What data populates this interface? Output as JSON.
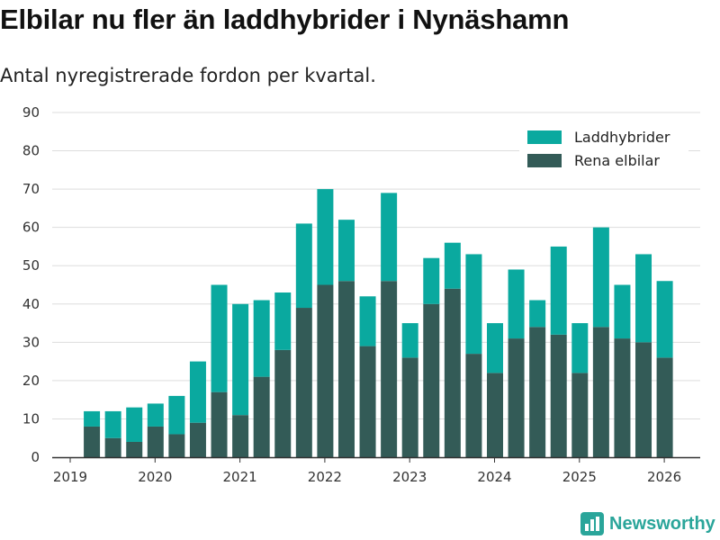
{
  "header": {
    "title": "Elbilar nu fler än laddhybrider i Nynäshamn",
    "subtitle": "Antal nyregistrerade fordon per kvartal."
  },
  "brand": {
    "name": "Newsworthy",
    "icon": "bar-chart-logo-icon",
    "color": "#2aa59a"
  },
  "colors": {
    "elbilar": "#335b57",
    "laddhybrider": "#0aa99f",
    "grid": "#dddddd",
    "axis": "#333333"
  },
  "chart_data": {
    "type": "bar",
    "stacked": true,
    "title": "Elbilar nu fler än laddhybrider i Nynäshamn",
    "subtitle": "Antal nyregistrerade fordon per kvartal.",
    "xlabel": "",
    "ylabel": "",
    "ylim": [
      0,
      90
    ],
    "yticks": [
      0,
      10,
      20,
      30,
      40,
      50,
      60,
      70,
      80,
      90
    ],
    "xticks": [
      "2019",
      "2020",
      "2021",
      "2022",
      "2023",
      "2024",
      "2025",
      "2026"
    ],
    "grid": true,
    "legend_position": "top-right",
    "categories": [
      "2019 Q2",
      "2019 Q3",
      "2019 Q4",
      "2020 Q1",
      "2020 Q2",
      "2020 Q3",
      "2020 Q4",
      "2021 Q1",
      "2021 Q2",
      "2021 Q3",
      "2021 Q4",
      "2022 Q1",
      "2022 Q2",
      "2022 Q3",
      "2022 Q4",
      "2023 Q1",
      "2023 Q2",
      "2023 Q3",
      "2023 Q4",
      "2024 Q1",
      "2024 Q2",
      "2024 Q3",
      "2024 Q4",
      "2025 Q1",
      "2025 Q2",
      "2025 Q3",
      "2025 Q4",
      "2026 Q1"
    ],
    "series": [
      {
        "name": "Rena elbilar",
        "values": [
          8,
          5,
          4,
          8,
          6,
          9,
          17,
          11,
          21,
          28,
          39,
          45,
          46,
          29,
          46,
          26,
          40,
          44,
          27,
          22,
          31,
          34,
          32,
          22,
          34,
          31,
          30,
          26
        ]
      },
      {
        "name": "Laddhybrider",
        "values": [
          4,
          7,
          9,
          6,
          10,
          16,
          28,
          29,
          20,
          15,
          22,
          25,
          16,
          13,
          23,
          9,
          12,
          12,
          26,
          13,
          18,
          7,
          23,
          13,
          26,
          14,
          23,
          20
        ]
      }
    ],
    "legend": [
      "Laddhybrider",
      "Rena elbilar"
    ]
  }
}
